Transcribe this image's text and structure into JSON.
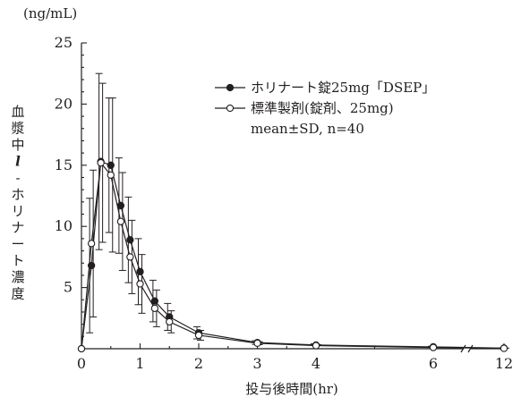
{
  "chart_data": {
    "type": "line",
    "title": "",
    "xlabel": "投与後時間(hr)",
    "ylabel": "血漿中l-ホリナート濃度",
    "y_unit": "(ng/mL)",
    "ylim": [
      0,
      25
    ],
    "y_ticks": [
      "5",
      "10",
      "15",
      "20",
      "25"
    ],
    "x_ticks": [
      {
        "value": 0,
        "label": "0"
      },
      {
        "value": 1,
        "label": "1"
      },
      {
        "value": 2,
        "label": "2"
      },
      {
        "value": 3,
        "label": "3"
      },
      {
        "value": 4,
        "label": "4"
      },
      {
        "value": 6,
        "label": "6"
      },
      {
        "value": 12,
        "label": "12"
      }
    ],
    "x_axis_break": "between 6 and 12",
    "legend_position": "top-right",
    "legend_note": "mean±SD, n=40",
    "series": [
      {
        "name": "ホリナート錠25mg「DSEP」",
        "marker": "filled-circle",
        "color": "#231f20",
        "x": [
          0,
          0.17,
          0.33,
          0.5,
          0.67,
          0.83,
          1,
          1.25,
          1.5,
          2,
          3,
          4,
          6,
          12
        ],
        "y": [
          0,
          6.8,
          15.3,
          15.0,
          11.7,
          8.9,
          6.3,
          3.9,
          2.6,
          1.3,
          0.5,
          0.3,
          0.15,
          0.05
        ],
        "sd": [
          0,
          5.5,
          7.2,
          5.5,
          3.9,
          3.5,
          2.7,
          1.7,
          1.1,
          0.5,
          0.15,
          0.1,
          0.05,
          0.02
        ]
      },
      {
        "name": "標準製剤(錠剤、25mg)",
        "marker": "open-circle",
        "color": "#231f20",
        "x": [
          0,
          0.17,
          0.33,
          0.5,
          0.67,
          0.83,
          1,
          1.25,
          1.5,
          2,
          3,
          4,
          6,
          12
        ],
        "y": [
          0,
          8.6,
          15.2,
          14.2,
          10.4,
          7.5,
          5.3,
          3.3,
          2.2,
          1.1,
          0.45,
          0.25,
          0.1,
          0.03
        ],
        "sd": [
          0,
          6.0,
          6.5,
          6.3,
          4.0,
          3.0,
          2.4,
          1.5,
          0.9,
          0.4,
          0.12,
          0.08,
          0.04,
          0.02
        ]
      }
    ]
  }
}
